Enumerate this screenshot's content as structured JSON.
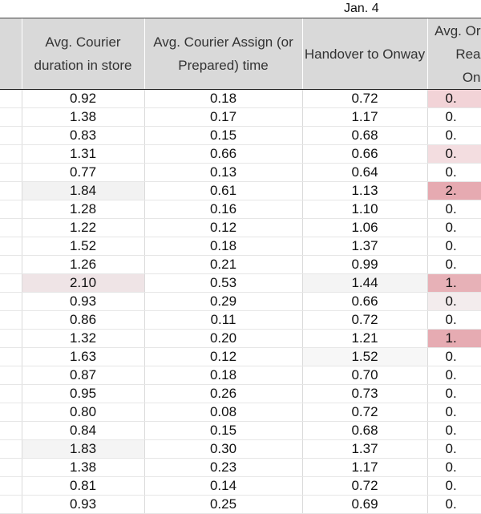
{
  "sheet": {
    "group_label": "Jan. 4",
    "headers": [
      "Avg. Courier duration in store",
      "Avg. Courier Assign (or Prepared) time",
      "Handover to Onway",
      [
        "Avg. Or",
        "Rea",
        "On"
      ]
    ],
    "rows": [
      [
        "0.92",
        "0.18",
        "0.72",
        "0."
      ],
      [
        "1.38",
        "0.17",
        "1.17",
        "0."
      ],
      [
        "0.83",
        "0.15",
        "0.68",
        "0."
      ],
      [
        "1.31",
        "0.66",
        "0.66",
        "0."
      ],
      [
        "0.77",
        "0.13",
        "0.64",
        "0."
      ],
      [
        "1.84",
        "0.61",
        "1.13",
        "2."
      ],
      [
        "1.28",
        "0.16",
        "1.10",
        "0."
      ],
      [
        "1.22",
        "0.12",
        "1.06",
        "0."
      ],
      [
        "1.52",
        "0.18",
        "1.37",
        "0."
      ],
      [
        "1.26",
        "0.21",
        "0.99",
        "0."
      ],
      [
        "2.10",
        "0.53",
        "1.44",
        "1."
      ],
      [
        "0.93",
        "0.29",
        "0.66",
        "0."
      ],
      [
        "0.86",
        "0.11",
        "0.72",
        "0."
      ],
      [
        "1.32",
        "0.20",
        "1.21",
        "1."
      ],
      [
        "1.63",
        "0.12",
        "1.52",
        "0."
      ],
      [
        "0.87",
        "0.18",
        "0.70",
        "0."
      ],
      [
        "0.95",
        "0.26",
        "0.73",
        "0."
      ],
      [
        "0.80",
        "0.08",
        "0.72",
        "0."
      ],
      [
        "0.84",
        "0.15",
        "0.68",
        "0."
      ],
      [
        "1.83",
        "0.30",
        "1.37",
        "0."
      ],
      [
        "1.38",
        "0.23",
        "1.17",
        "0."
      ],
      [
        "0.81",
        "0.14",
        "0.72",
        "0."
      ],
      [
        "0.93",
        "0.25",
        "0.69",
        "0."
      ]
    ]
  }
}
